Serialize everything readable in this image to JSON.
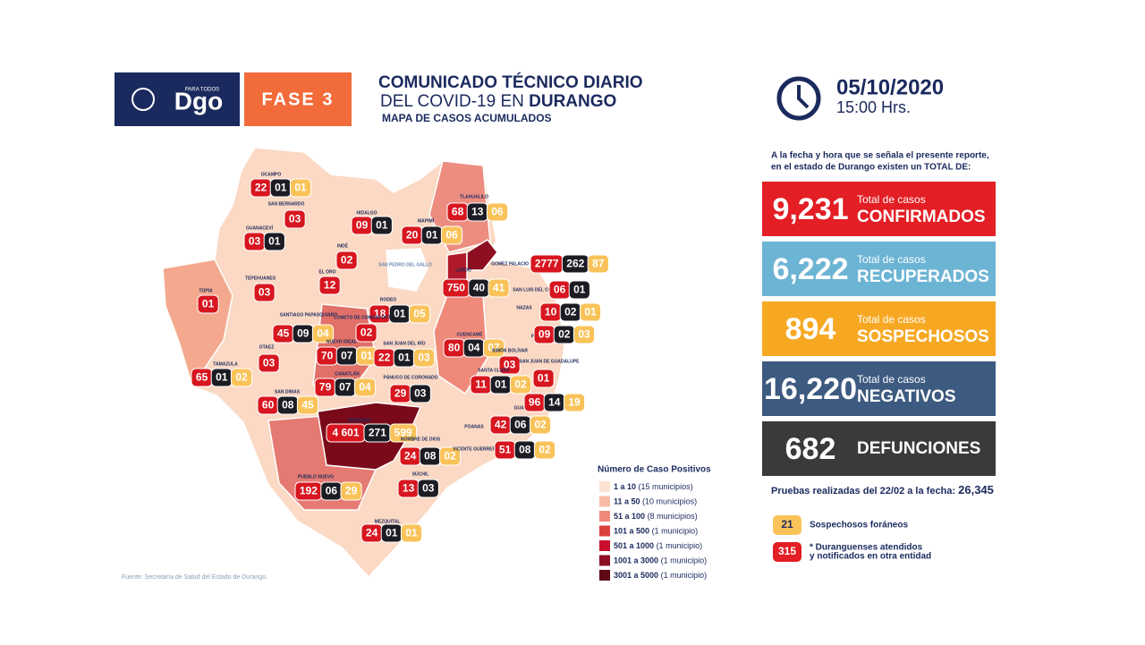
{
  "header": {
    "logo": "Dgo",
    "logo_tag": "PARA TODOS",
    "phase": "FASE 3",
    "title": "COMUNICADO TÉCNICO DIARIO",
    "subtitle_prefix": "DEL COVID-19 EN",
    "subtitle_state": "DURANGO",
    "map_title": "MAPA DE CASOS ACUMULADOS",
    "date": "05/10/2020",
    "time": "15:00 Hrs."
  },
  "intro": [
    "A la fecha y hora que se señala el presente reporte,",
    "en el estado de Durango existen un TOTAL DE:"
  ],
  "stats": [
    {
      "value": "9,231",
      "caption": "Total de casos",
      "label": "CONFIRMADOS"
    },
    {
      "value": "6,222",
      "caption": "Total de casos",
      "label": "RECUPERADOS"
    },
    {
      "value": "894",
      "caption": "Total de casos",
      "label": "SOSPECHOSOS"
    },
    {
      "value": "16,220",
      "caption": "Total de casos",
      "label": "NEGATIVOS"
    },
    {
      "value": "682",
      "label": "DEFUNCIONES"
    }
  ],
  "tests": {
    "label": "Pruebas realizadas del 22/02 a la fecha:",
    "value": "26,345"
  },
  "notes": [
    {
      "badge": "21",
      "text": [
        "Sospechosos foráneos"
      ]
    },
    {
      "badge": "315",
      "text": [
        "* Duranguenses atendidos",
        "y notificados en otra entidad"
      ]
    }
  ],
  "legend": {
    "title": "Número de Caso Positivos",
    "items": [
      {
        "range": "1 a 10",
        "count": "(15 municipios)"
      },
      {
        "range": "11 a 50",
        "count": "(10 municipios)"
      },
      {
        "range": "51 a 100",
        "count": "(8 municipios)"
      },
      {
        "range": "101 a 500",
        "count": "(1 municipio)"
      },
      {
        "range": "501 a 1000",
        "count": "(1 municipio)"
      },
      {
        "range": "1001 a 3000",
        "count": "(1 municipio)"
      },
      {
        "range": "3001 a 5000",
        "count": "(1 municipio)"
      }
    ]
  },
  "source": "Fuente: Secretaría de Salud del Estado de Durango.",
  "municipalities": [
    {
      "name": "OCAMPO",
      "counts": [
        "22",
        "01",
        "01"
      ]
    },
    {
      "name": "SAN BERNARDO",
      "counts": [
        "03"
      ]
    },
    {
      "name": "GUANACEVÍ",
      "counts": [
        "03",
        "01"
      ]
    },
    {
      "name": "HIDALGO",
      "counts": [
        "09",
        "01"
      ]
    },
    {
      "name": "MAPIMÍ",
      "counts": [
        "20",
        "01",
        "06"
      ]
    },
    {
      "name": "TLAHUALILO",
      "counts": [
        "68",
        "13",
        "06"
      ]
    },
    {
      "name": "GOMEZ PALACIO",
      "counts": [
        "2777",
        "262",
        "87"
      ]
    },
    {
      "name": "INDÉ",
      "counts": [
        "02"
      ]
    },
    {
      "name": "EL ORO",
      "counts": [
        "12"
      ]
    },
    {
      "name": "TEPEHUANES",
      "counts": [
        "03"
      ]
    },
    {
      "name": "TOPIA",
      "counts": [
        "01"
      ]
    },
    {
      "name": "LERDO",
      "counts": [
        "750",
        "40",
        "41"
      ]
    },
    {
      "name": "SAN LUIS DEL CORDERO",
      "counts": [
        "06",
        "01"
      ]
    },
    {
      "name": "RODEO",
      "counts": [
        "18",
        "01",
        "05"
      ]
    },
    {
      "name": "NAZAS",
      "counts": [
        "10",
        "02",
        "01"
      ]
    },
    {
      "name": "SANTIAGO PAPASQUIARO",
      "counts": [
        "45",
        "09",
        "04"
      ]
    },
    {
      "name": "CONETO DE COMONFORT",
      "counts": [
        "02"
      ]
    },
    {
      "name": "PEÑON BLANCO",
      "counts": [
        "09",
        "02",
        "03"
      ]
    },
    {
      "name": "CUENCAMÉ",
      "counts": [
        "80",
        "04",
        "07"
      ]
    },
    {
      "name": "NUEVO IDEAL",
      "counts": [
        "70",
        "07",
        "01"
      ]
    },
    {
      "name": "SAN JUAN DEL RÍO",
      "counts": [
        "22",
        "01",
        "03"
      ]
    },
    {
      "name": "OTAEZ",
      "counts": [
        "03"
      ]
    },
    {
      "name": "SIMÓN BOLÍVAR",
      "counts": [
        "03"
      ]
    },
    {
      "name": "SAN JUAN DE GUADALUPE",
      "counts": [
        "01"
      ]
    },
    {
      "name": "TAMAZULA",
      "counts": [
        "65",
        "01",
        "02"
      ]
    },
    {
      "name": "CANATLÁN",
      "counts": [
        "79",
        "07",
        "04"
      ]
    },
    {
      "name": "PÁNUCO DE CORONADO",
      "counts": [
        "29",
        "03"
      ]
    },
    {
      "name": "SANTA CLARA",
      "counts": [
        "11",
        "01",
        "02"
      ]
    },
    {
      "name": "GUADALUPE VICTORIA",
      "counts": [
        "96",
        "14",
        "19"
      ]
    },
    {
      "name": "SAN DIMAS",
      "counts": [
        "60",
        "08",
        "45"
      ]
    },
    {
      "name": "DURANGO",
      "counts": [
        "4 601",
        "271",
        "599"
      ]
    },
    {
      "name": "POANAS",
      "counts": [
        "42",
        "06",
        "02"
      ]
    },
    {
      "name": "NOMBRE DE DIOS",
      "counts": [
        "24",
        "08",
        "02"
      ]
    },
    {
      "name": "VICENTE GUERRERO",
      "counts": [
        "51",
        "08",
        "02"
      ]
    },
    {
      "name": "PUEBLO NUEVO",
      "counts": [
        "192",
        "06",
        "29"
      ]
    },
    {
      "name": "SÚCHIL",
      "counts": [
        "13",
        "03"
      ]
    },
    {
      "name": "MEZQUITAL",
      "counts": [
        "24",
        "01",
        "01"
      ]
    },
    {
      "name": "SAN PEDRO DEL GALLO",
      "counts": []
    }
  ]
}
